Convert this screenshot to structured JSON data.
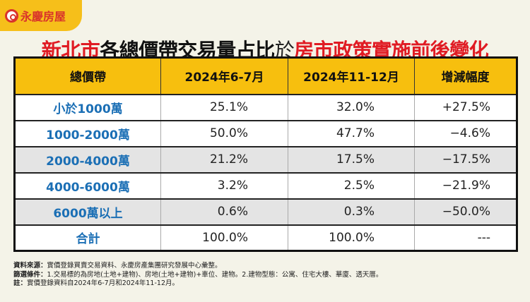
{
  "brand": {
    "name": "永慶房屋",
    "color": "#d9332b",
    "tab_color": "#f6bf1a"
  },
  "title": {
    "segments": [
      {
        "text": "新北市",
        "color": "red"
      },
      {
        "text": "各總價帶交易量占比",
        "color": "black"
      },
      {
        "text": "於",
        "color": "thin"
      },
      {
        "text": "房市政策實施前後變化",
        "color": "red"
      }
    ]
  },
  "table": {
    "headers": [
      "總價帶",
      "2024年6-7月",
      "2024年11-12月",
      "增減幅度"
    ],
    "rows": [
      {
        "band": "小於1000萬",
        "p1": "25.1%",
        "p2": "32.0%",
        "change": "+27.5%",
        "shaded": false
      },
      {
        "band": "1000-2000萬",
        "p1": "50.0%",
        "p2": "47.7%",
        "change": "−4.6%",
        "shaded": false
      },
      {
        "band": "2000-4000萬",
        "p1": "21.2%",
        "p2": "17.5%",
        "change": "−17.5%",
        "shaded": true
      },
      {
        "band": "4000-6000萬",
        "p1": "3.2%",
        "p2": "2.5%",
        "change": "−21.9%",
        "shaded": false
      },
      {
        "band": "6000萬以上",
        "p1": "0.6%",
        "p2": "0.3%",
        "change": "−50.0%",
        "shaded": true
      },
      {
        "band": "合計",
        "p1": "100.0%",
        "p2": "100.0%",
        "change": "---",
        "shaded": false
      }
    ],
    "header_color": "#f7bf0e",
    "band_color": "#1b6fb5"
  },
  "notes": [
    {
      "label": "資料來源：",
      "text": "實價登錄買賣交易資料、永慶房產集團研究發展中心彙整。"
    },
    {
      "label": "篩選條件：",
      "text": "1.交易標的為房地(土地+建物)、房地(土地+建物)+車位、建物。2.建物型態：公寓、住宅大樓、華廈、透天厝。"
    },
    {
      "label": "註：",
      "text": "實價登錄資料自2024年6-7月和2024年11-12月。"
    }
  ]
}
